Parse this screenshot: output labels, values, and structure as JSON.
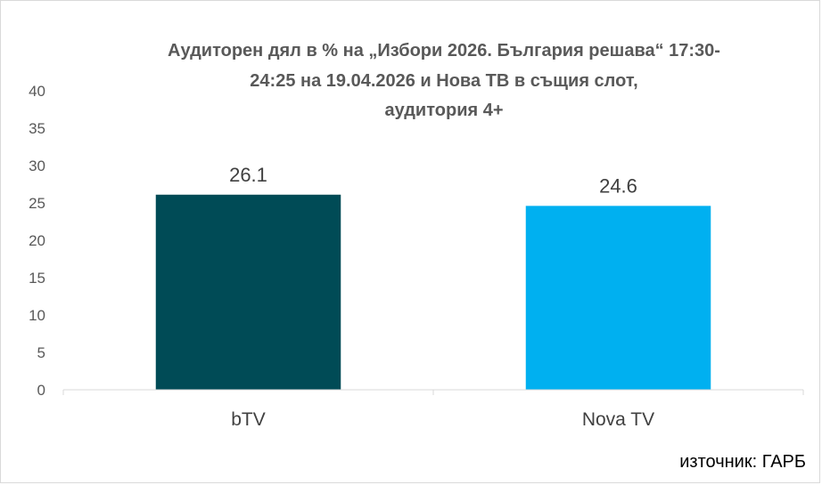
{
  "chart_data": {
    "type": "bar",
    "title_lines": [
      "Аудиторен дял в % на „Избори 2026. България решава“ 17:30-",
      "24:25 на 19.04.2026 и Нова ТВ в същия слот,",
      "аудитория 4+"
    ],
    "categories": [
      "bTV",
      "Nova TV"
    ],
    "values": [
      26.1,
      24.6
    ],
    "data_labels": [
      "26.1",
      "24.6"
    ],
    "colors": [
      "#004b56",
      "#00b0f0"
    ],
    "ylim": [
      0,
      40
    ],
    "yticks": [
      "0",
      "5",
      "10",
      "15",
      "20",
      "25",
      "30",
      "35",
      "40"
    ],
    "grid": false,
    "legend": "none"
  },
  "source": "източник: ГАРБ"
}
